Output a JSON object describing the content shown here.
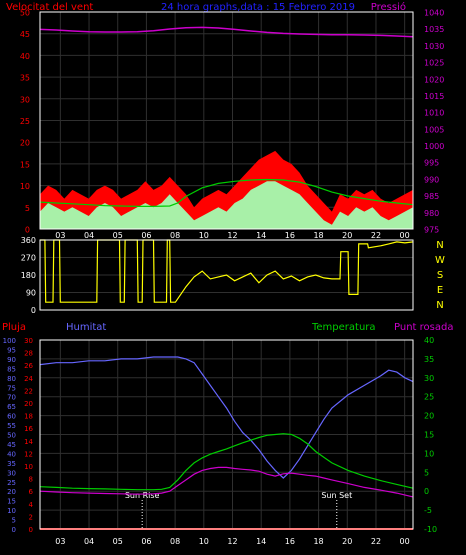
{
  "header": {
    "left_title": "Velocitat del vent",
    "center_title": "24 hora graphs,data : 15 Febrero 2019",
    "right_title": "Pressió"
  },
  "colors": {
    "background": "#000000",
    "gust": "#ff0000",
    "avg_wind": "#a8f0a8",
    "temp_small": "#00cc00",
    "pressure": "#cc00cc",
    "direction": "#ffff00",
    "humidity": "#6666ff",
    "temperature": "#00cc00",
    "dewpoint": "#cc00cc",
    "rain": "#ff0000",
    "title_red": "#ff0000",
    "title_blue": "#2222ff",
    "title_magenta": "#cc00cc",
    "title_green": "#00cc00",
    "axis_blue": "#6666ff",
    "axis_green": "#00cc00",
    "axis_magenta": "#cc00cc",
    "grid": "#2f2f2f",
    "frame": "#ffffff",
    "tick_text": "#000000",
    "marker": "#ffffff"
  },
  "chart_data": [
    {
      "type": "area",
      "name": "wind",
      "xlim": [
        1,
        24
      ],
      "x_ticks": [
        "03",
        "04",
        "05",
        "06",
        "08",
        "10",
        "12",
        "14",
        "16",
        "18",
        "20",
        "22",
        "00"
      ],
      "ylim": [
        0,
        50
      ],
      "y_ticks": [
        "0",
        "5",
        "10",
        "15",
        "20",
        "25",
        "30",
        "35",
        "40",
        "45",
        "50"
      ],
      "ylim_right": [
        975,
        1040
      ],
      "y_ticks_right": [
        "975",
        "980",
        "985",
        "990",
        "995",
        "1000",
        "1005",
        "1010",
        "1015",
        "1020",
        "1025",
        "1030",
        "1035",
        "1040"
      ],
      "series": [
        {
          "key": "gust",
          "x": [
            1,
            1.5,
            2,
            2.5,
            3,
            3.5,
            4,
            4.5,
            5,
            5.5,
            6,
            6.5,
            7,
            7.5,
            8,
            8.5,
            9,
            9.5,
            10,
            10.5,
            11,
            11.5,
            12,
            12.5,
            13,
            13.5,
            14,
            14.5,
            15,
            15.5,
            16,
            16.5,
            17,
            17.5,
            18,
            18.5,
            19,
            19.5,
            20,
            20.5,
            21,
            21.5,
            22,
            22.5,
            23,
            23.5,
            24
          ],
          "values": [
            8,
            10,
            9,
            7,
            9,
            8,
            7,
            9,
            10,
            9,
            7,
            8,
            9,
            11,
            9,
            10,
            12,
            10,
            8,
            5,
            7,
            8,
            9,
            8,
            10,
            12,
            14,
            16,
            17,
            18,
            16,
            15,
            13,
            10,
            8,
            6,
            4,
            8,
            7,
            9,
            8,
            9,
            7,
            6,
            7,
            8,
            9
          ]
        },
        {
          "key": "avg_wind",
          "x": [
            1,
            1.5,
            2,
            2.5,
            3,
            3.5,
            4,
            4.5,
            5,
            5.5,
            6,
            6.5,
            7,
            7.5,
            8,
            8.5,
            9,
            9.5,
            10,
            10.5,
            11,
            11.5,
            12,
            12.5,
            13,
            13.5,
            14,
            14.5,
            15,
            15.5,
            16,
            16.5,
            17,
            17.5,
            18,
            18.5,
            19,
            19.5,
            20,
            20.5,
            21,
            21.5,
            22,
            22.5,
            23,
            23.5,
            24
          ],
          "values": [
            4,
            6,
            5,
            4,
            5,
            4,
            3,
            5,
            6,
            5,
            3,
            4,
            5,
            6,
            5,
            6,
            8,
            6,
            4,
            2,
            3,
            4,
            5,
            4,
            6,
            7,
            9,
            10,
            11,
            11,
            10,
            9,
            8,
            6,
            4,
            2,
            1,
            4,
            3,
            5,
            4,
            5,
            3,
            2,
            3,
            4,
            5
          ]
        },
        {
          "key": "temp_small",
          "x": [
            1,
            2,
            3,
            4,
            5,
            6,
            7,
            8,
            9,
            9.5,
            10,
            11,
            12,
            13,
            14,
            15,
            16,
            17,
            18,
            19,
            20,
            21,
            22,
            23,
            24
          ],
          "values": [
            6.2,
            6.0,
            5.8,
            5.6,
            5.4,
            5.3,
            5.2,
            5.2,
            5.3,
            6.0,
            7.5,
            9.5,
            10.5,
            11.0,
            11.3,
            11.4,
            11.3,
            10.8,
            9.8,
            8.5,
            7.6,
            7.0,
            6.4,
            6.0,
            5.6
          ]
        },
        {
          "key": "pressure",
          "x": [
            1,
            2,
            3,
            4,
            5,
            6,
            7,
            8,
            9,
            10,
            11,
            12,
            13,
            14,
            15,
            16,
            17,
            18,
            19,
            20,
            21,
            22,
            23,
            24
          ],
          "values": [
            1034.8,
            1034.6,
            1034.3,
            1034.1,
            1034.0,
            1034.0,
            1034.1,
            1034.4,
            1034.9,
            1035.3,
            1035.4,
            1035.2,
            1034.8,
            1034.3,
            1033.9,
            1033.6,
            1033.4,
            1033.3,
            1033.2,
            1033.2,
            1033.1,
            1033.0,
            1032.8,
            1032.6
          ]
        }
      ]
    },
    {
      "type": "line",
      "name": "wind_direction",
      "xlim": [
        1,
        24
      ],
      "ylim": [
        0,
        360
      ],
      "y_ticks": [
        "0",
        "90",
        "180",
        "270",
        "360"
      ],
      "direction_labels": [
        "N",
        "W",
        "S",
        "E",
        "N"
      ],
      "series": [
        {
          "key": "direction",
          "x": [
            1,
            1.3,
            1.35,
            1.8,
            1.85,
            2.2,
            2.25,
            4.5,
            4.55,
            5.9,
            5.95,
            6.2,
            6.25,
            7.0,
            7.05,
            7.3,
            7.35,
            8.0,
            8.05,
            8.8,
            8.85,
            9.0,
            9.05,
            9.3,
            9.35,
            10,
            10.5,
            11,
            11.5,
            12,
            12.5,
            13,
            13.5,
            14,
            14.5,
            15,
            15.5,
            16,
            16.5,
            17,
            17.5,
            18,
            18.5,
            19,
            19.5,
            19.55,
            20.0,
            20.05,
            20.6,
            20.65,
            21.2,
            21.25,
            22.0,
            22.5,
            23.0,
            23.5,
            24
          ],
          "values": [
            360,
            360,
            40,
            40,
            360,
            360,
            40,
            40,
            360,
            360,
            40,
            40,
            360,
            360,
            40,
            40,
            360,
            360,
            40,
            40,
            360,
            360,
            40,
            40,
            40,
            120,
            170,
            200,
            160,
            170,
            180,
            150,
            170,
            190,
            140,
            180,
            200,
            160,
            175,
            150,
            170,
            180,
            165,
            160,
            160,
            300,
            300,
            80,
            80,
            340,
            340,
            320,
            330,
            340,
            350,
            345,
            350
          ]
        }
      ]
    },
    {
      "type": "line",
      "name": "humidity_temperature",
      "xlim": [
        1,
        24
      ],
      "left_titles": [
        "Pluja",
        "Humitat"
      ],
      "right_titles": [
        "Temperatura",
        "Punt rosada"
      ],
      "ylim_humidity": [
        0,
        100
      ],
      "y_ticks_humidity": [
        "0",
        "5",
        "10",
        "15",
        "20",
        "25",
        "30",
        "35",
        "40",
        "45",
        "50",
        "55",
        "60",
        "65",
        "70",
        "75",
        "80",
        "85",
        "90",
        "95",
        "100"
      ],
      "ylim_rain": [
        0,
        30
      ],
      "y_ticks_rain": [
        "0",
        "2",
        "4",
        "6",
        "8",
        "10",
        "12",
        "14",
        "16",
        "18",
        "20",
        "22",
        "24",
        "26",
        "28",
        "30"
      ],
      "ylim_temp": [
        -10,
        40
      ],
      "y_ticks_temp": [
        "-10",
        "-5",
        "0",
        "5",
        "10",
        "15",
        "20",
        "25",
        "30",
        "35",
        "40"
      ],
      "markers": [
        {
          "label": "Sun Rise",
          "x": 7.3
        },
        {
          "label": "Sun Set",
          "x": 19.3
        }
      ],
      "series": [
        {
          "key": "humidity",
          "unit": "%",
          "x": [
            1,
            2,
            3,
            4,
            5,
            6,
            7,
            8,
            9,
            9.5,
            10,
            10.5,
            11,
            11.5,
            12,
            12.5,
            13,
            13.5,
            14,
            14.5,
            15,
            15.5,
            16,
            16.5,
            17,
            17.5,
            18,
            18.5,
            19,
            20,
            21,
            22,
            22.5,
            23,
            23.5,
            24
          ],
          "values": [
            87,
            88,
            88,
            89,
            89,
            90,
            90,
            91,
            91,
            91,
            90,
            88,
            82,
            76,
            70,
            64,
            57,
            51,
            47,
            42,
            36,
            31,
            27,
            31,
            37,
            44,
            51,
            58,
            64,
            71,
            76,
            81,
            84,
            83,
            80,
            78
          ]
        },
        {
          "key": "temperature",
          "unit": "C",
          "x": [
            1,
            2,
            3,
            4,
            5,
            6,
            7,
            8,
            8.5,
            9,
            9.5,
            10,
            10.5,
            11,
            11.5,
            12,
            12.5,
            13,
            13.5,
            14,
            14.5,
            15,
            15.5,
            16,
            16.5,
            17,
            17.5,
            18,
            18.5,
            19,
            20,
            21,
            22,
            23,
            24
          ],
          "values": [
            1.2,
            1,
            0.8,
            0.7,
            0.6,
            0.5,
            0.4,
            0.4,
            0.5,
            1,
            3,
            5.5,
            7.5,
            8.8,
            9.8,
            10.5,
            11.2,
            12,
            12.8,
            13.5,
            14.2,
            14.8,
            15,
            15.2,
            15,
            14,
            12.5,
            10.5,
            9,
            7.5,
            5.5,
            4,
            2.8,
            1.8,
            0.8
          ]
        },
        {
          "key": "dewpoint",
          "unit": "C",
          "x": [
            1,
            2,
            3,
            4,
            5,
            6,
            7,
            8,
            8.5,
            9,
            9.5,
            10,
            10.5,
            11,
            11.5,
            12,
            12.5,
            13,
            13.5,
            14,
            14.5,
            15,
            15.5,
            16,
            16.5,
            17,
            17.5,
            18,
            18.5,
            19,
            20,
            21,
            22,
            23,
            24
          ],
          "values": [
            0,
            -0.2,
            -0.4,
            -0.5,
            -0.6,
            -0.7,
            -0.8,
            -0.7,
            -0.5,
            0,
            1.5,
            3,
            4.5,
            5.5,
            6,
            6.3,
            6.3,
            6,
            5.8,
            5.6,
            5.3,
            4.5,
            4,
            4.6,
            4.8,
            4.5,
            4.2,
            4,
            3.5,
            3,
            2,
            1,
            0.3,
            -0.5,
            -1.5
          ]
        },
        {
          "key": "rain",
          "unit": "mm",
          "x": [
            1,
            24
          ],
          "values": [
            0,
            0
          ]
        }
      ]
    }
  ]
}
